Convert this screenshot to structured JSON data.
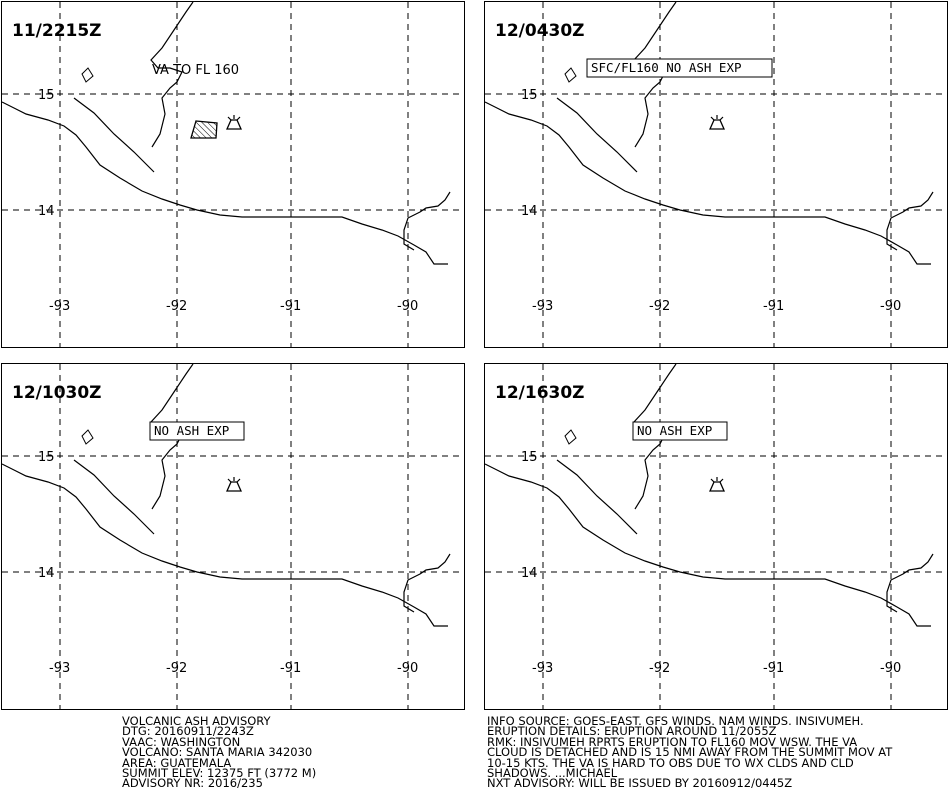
{
  "panels": [
    {
      "time": "11/2215Z",
      "annotation": "VA TO FL 160",
      "annotation_boxed": false,
      "ash_polygon": true
    },
    {
      "time": "12/0430Z",
      "annotation": "SFC/FL160 NO ASH EXP",
      "annotation_boxed": true,
      "ash_polygon": false
    },
    {
      "time": "12/1030Z",
      "annotation": "NO ASH EXP",
      "annotation_boxed": true,
      "ash_polygon": false
    },
    {
      "time": "12/1630Z",
      "annotation": "NO ASH EXP",
      "annotation_boxed": true,
      "ash_polygon": false
    }
  ],
  "lon_labels": [
    "-93",
    "-92",
    "-91",
    "-90"
  ],
  "lat_labels": [
    "15",
    "14"
  ],
  "icons": {
    "volcano": "volcano-icon",
    "ash_area": "ash-cloud-polygon"
  },
  "advisory_left": [
    "VOLCANIC ASH ADVISORY",
    "DTG: 20160911/2243Z",
    "VAAC: WASHINGTON",
    "VOLCANO: SANTA MARIA 342030",
    "AREA: GUATEMALA",
    "SUMMIT ELEV: 12375 FT (3772 M)",
    "ADVISORY NR: 2016/235"
  ],
  "advisory_right": [
    "INFO SOURCE: GOES-EAST. GFS WINDS. NAM WINDS. INSIVUMEH.",
    "ERUPTION DETAILS: ERUPTION AROUND 11/2055Z",
    "RMK: INSIVUMEH RPRTS ERUPTION TO FL160 MOV WSW. THE VA",
    "CLOUD IS DETACHED AND IS 15 NMI AWAY FROM THE SUMMIT MOV AT",
    "10-15 KTS. THE VA IS HARD TO OBS DUE TO WX CLDS AND CLD",
    "SHADOWS. ...MICHAEL",
    "NXT ADVISORY: WILL BE ISSUED BY 20160912/0445Z"
  ],
  "colors": {
    "line": "#000000",
    "background": "#ffffff"
  }
}
